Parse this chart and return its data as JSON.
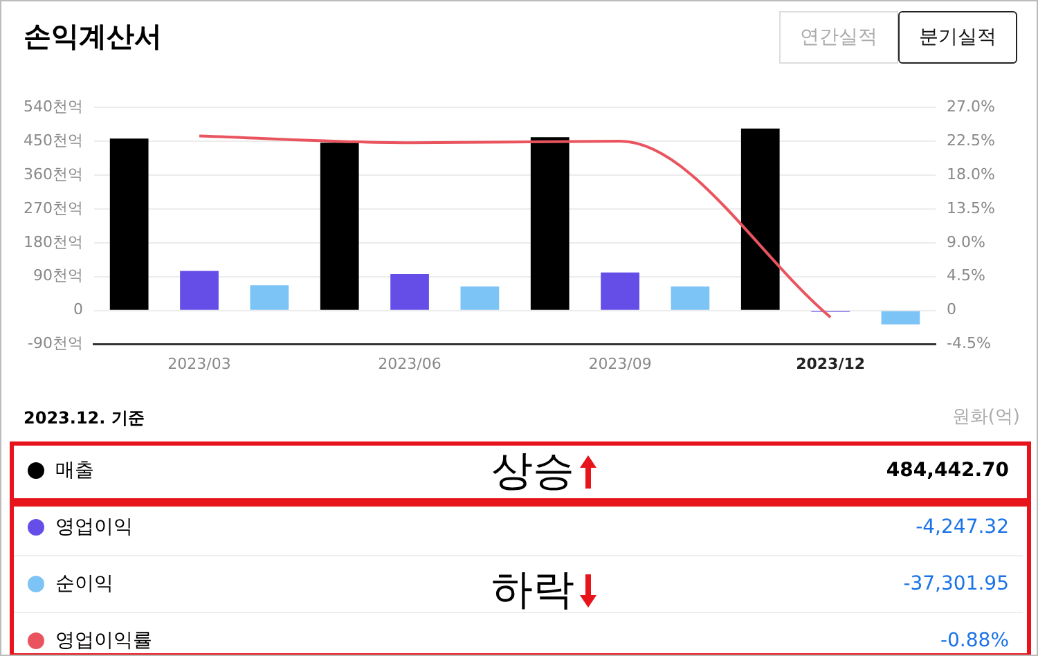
{
  "chart_data": {
    "type": "bar",
    "title": "손익계산서",
    "categories": [
      "2023/03",
      "2023/06",
      "2023/09",
      "2023/12"
    ],
    "series": [
      {
        "name": "매출",
        "color": "#000000",
        "values": [
          457,
          446,
          461,
          484
        ]
      },
      {
        "name": "영업이익",
        "color": "#654ee8",
        "values": [
          105,
          97,
          101,
          -4
        ]
      },
      {
        "name": "순이익",
        "color": "#7cc4f5",
        "values": [
          67,
          64,
          64,
          -37
        ]
      },
      {
        "name": "영업이익률",
        "type": "line",
        "axis": "y2",
        "color": "#e9545e",
        "values": [
          23.2,
          22.3,
          22.5,
          -0.9
        ]
      }
    ],
    "ylim": [
      -90,
      540
    ],
    "yticks": [
      {
        "value": -90,
        "label": "-90천억"
      },
      0,
      {
        "value": 90,
        "label": "90천억"
      },
      {
        "value": 180,
        "label": "180천억"
      },
      {
        "value": 270,
        "label": "270천억"
      },
      {
        "value": 360,
        "label": "360천억"
      },
      {
        "value": 450,
        "label": "450천억"
      },
      {
        "value": 540,
        "label": "540천억"
      }
    ],
    "y2lim": [
      -4.5,
      27
    ],
    "y2ticks": [
      {
        "value": -4.5,
        "label": "-4.5%"
      },
      0,
      {
        "value": 4.5,
        "label": "4.5%"
      },
      {
        "value": 9,
        "label": "9.0%"
      },
      {
        "value": 13.5,
        "label": "13.5%"
      },
      {
        "value": 18,
        "label": "18.0%"
      },
      {
        "value": 22.5,
        "label": "22.5%"
      },
      {
        "value": 27,
        "label": "27.0%"
      }
    ],
    "grid": "y",
    "legend": "bottom",
    "marker": "none",
    "annotations": [
      "연간실적",
      "분기실적",
      "2023.12. 기준",
      "원화(억)",
      "상승",
      "하락",
      "484,442.70",
      "-4,247.32",
      "-37,301.95",
      "-0.88%"
    ]
  }
}
